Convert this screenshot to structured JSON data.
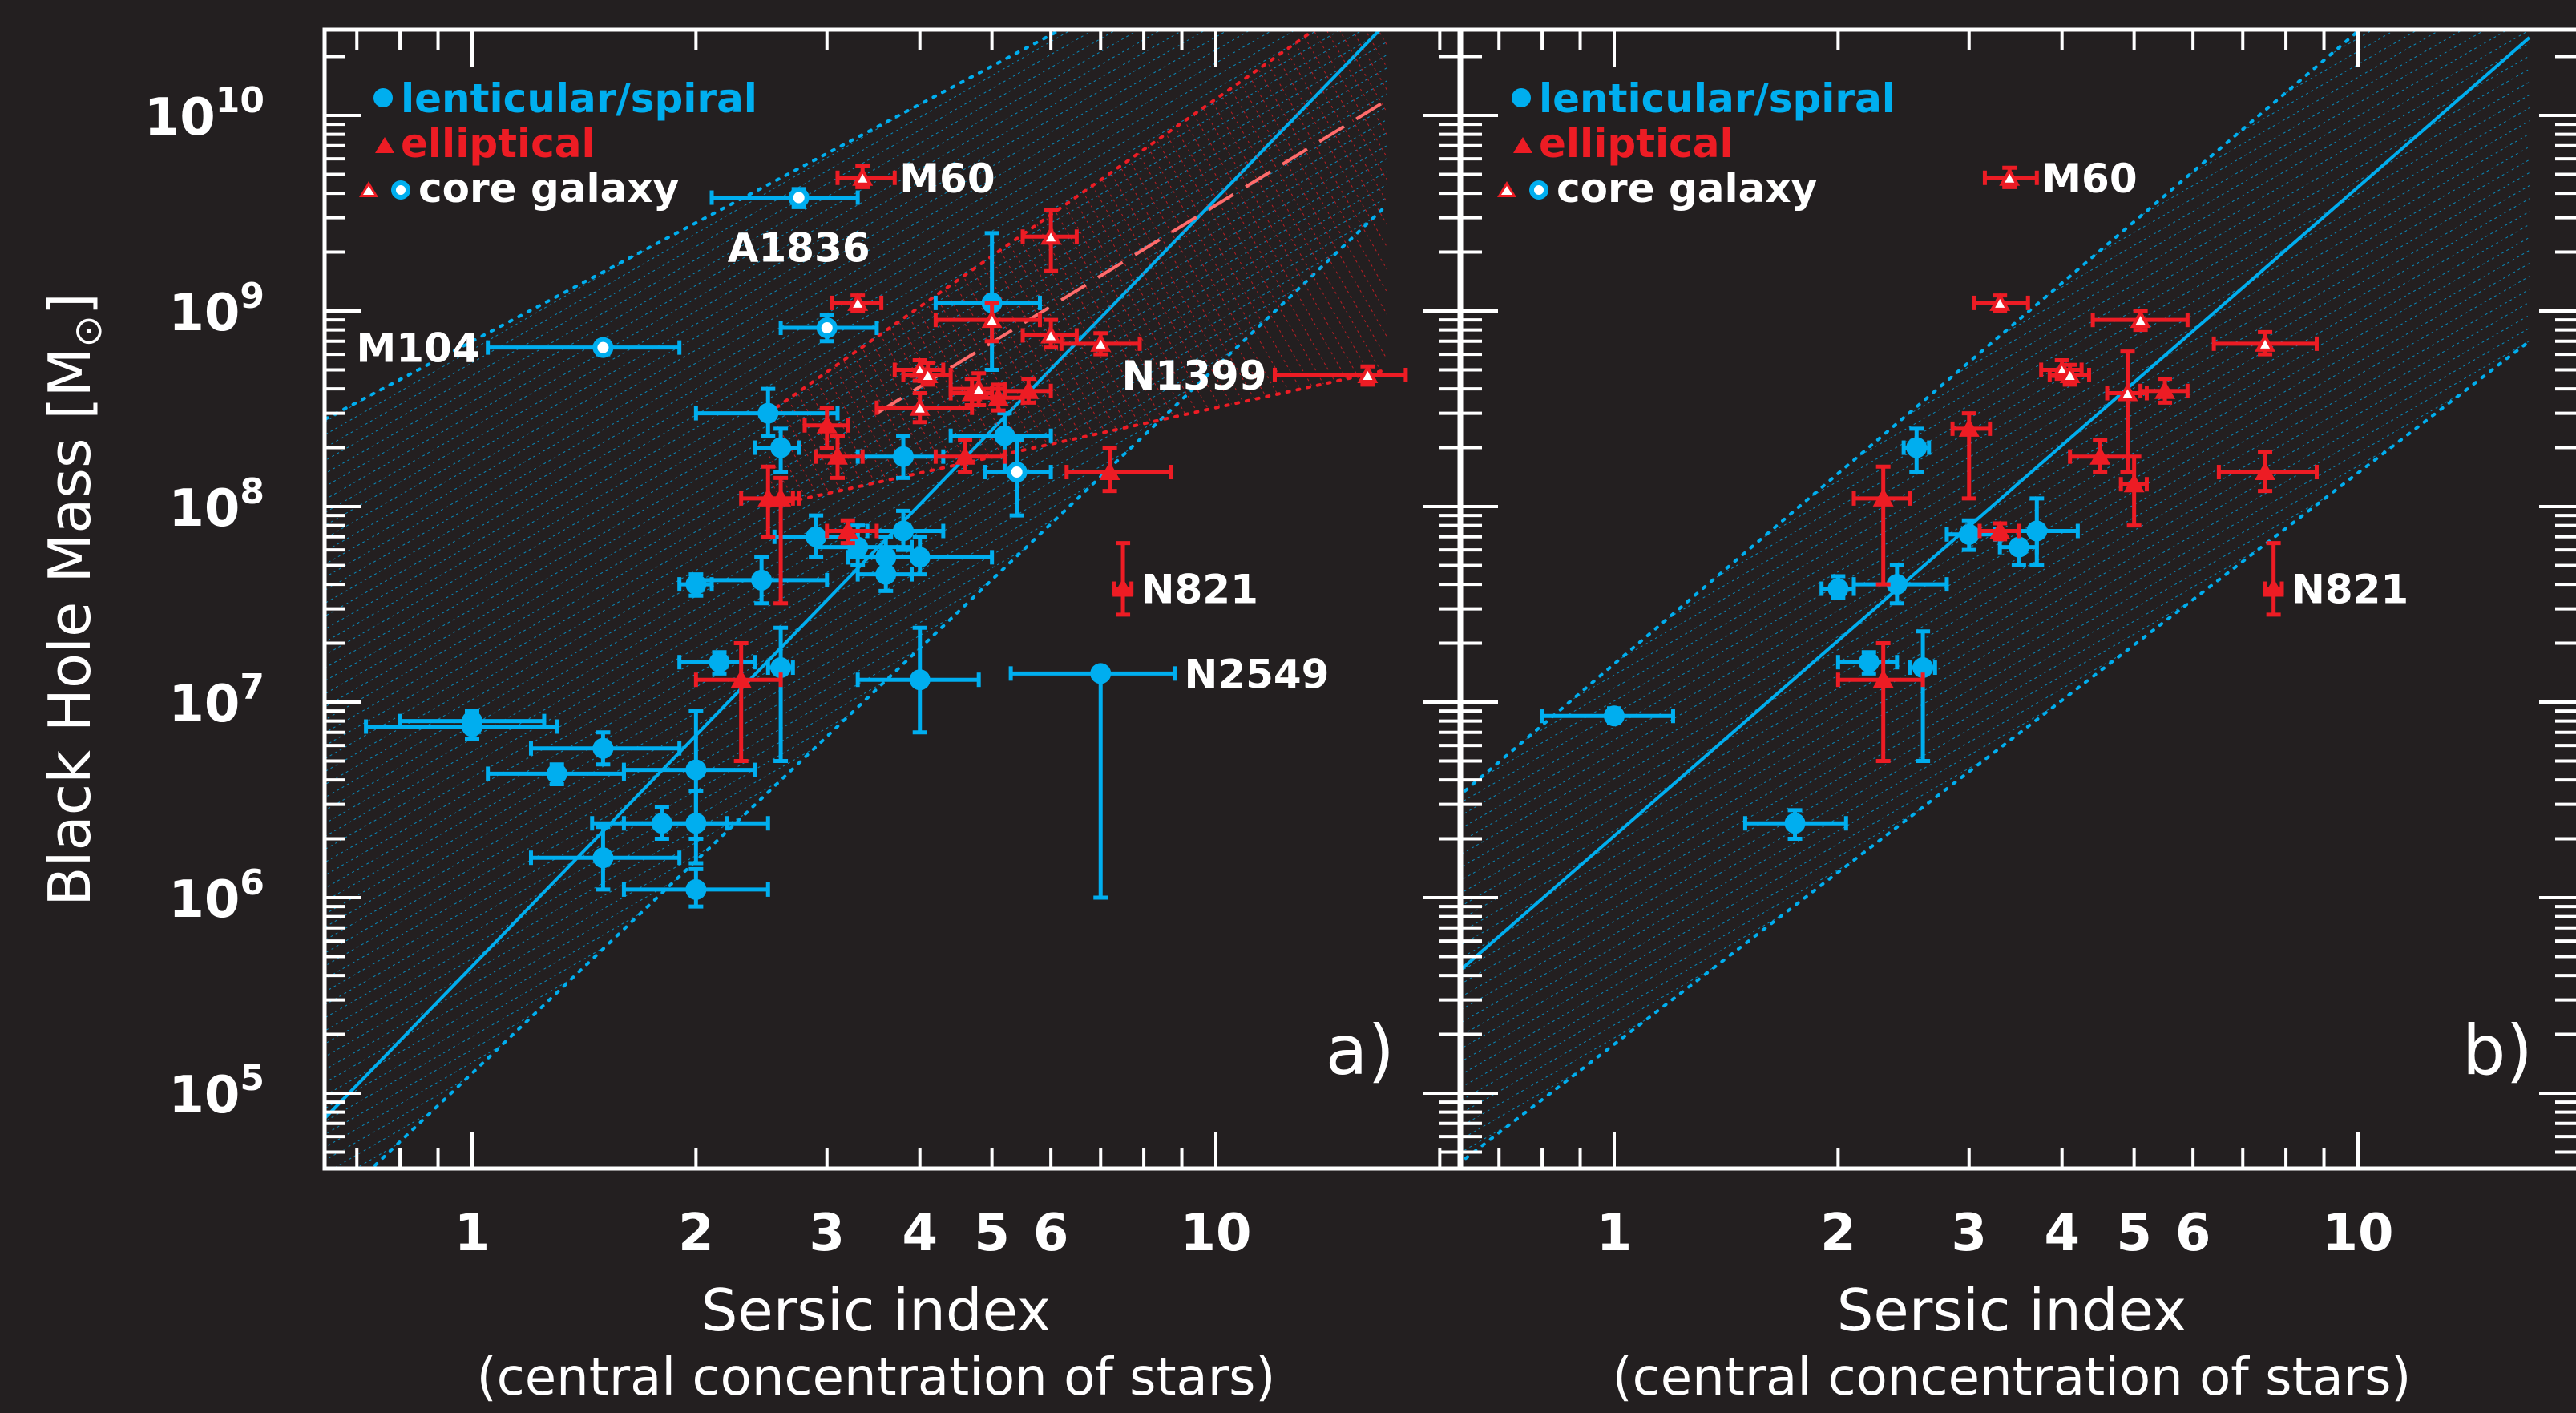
{
  "colors": {
    "background": "#231f20",
    "axes": "#ffffff",
    "spiral": "#00aeef",
    "elliptical": "#ed1c24",
    "fit_dashed": "#ff6b6b"
  },
  "y_axis_title": "Black Hole Mass [M",
  "y_axis_sun": "⊙",
  "y_axis_close": "]",
  "y_tick_labels": [
    {
      "base": "10",
      "exp": "5"
    },
    {
      "base": "10",
      "exp": "6"
    },
    {
      "base": "10",
      "exp": "7"
    },
    {
      "base": "10",
      "exp": "8"
    },
    {
      "base": "10",
      "exp": "9"
    },
    {
      "base": "10",
      "exp": "10"
    }
  ],
  "x_tick_labels": [
    "1",
    "2",
    "3",
    "4",
    "5",
    "6",
    "10"
  ],
  "x_axis_title": "Sersic index",
  "x_axis_subtitle": "(central concentration of stars)",
  "legend": {
    "spiral": "lenticular/spiral",
    "elliptical": "elliptical",
    "core": "core galaxy",
    "position": "top-left"
  },
  "chart_data": [
    {
      "type": "scatter",
      "panel_label": "a)",
      "x_scale": "log",
      "y_scale": "log",
      "xlim": [
        0.67,
        16.5
      ],
      "ylim": [
        50000,
        20000000000
      ],
      "series": [
        {
          "name": "lenticular/spiral",
          "points": [
            {
              "x": 1.0,
              "y": 8000000,
              "xlo": 0.8,
              "xhi": 1.25,
              "ylo": 7000000,
              "yhi": 9000000
            },
            {
              "x": 1.0,
              "y": 7500000,
              "xlo": 0.72,
              "xhi": 1.3,
              "ylo": 6500000,
              "yhi": 8500000
            },
            {
              "x": 1.3,
              "y": 4300000,
              "xlo": 1.05,
              "xhi": 1.6,
              "ylo": 3800000,
              "yhi": 4800000
            },
            {
              "x": 1.5,
              "y": 5800000,
              "xlo": 1.2,
              "xhi": 1.9,
              "ylo": 4800000,
              "yhi": 7000000
            },
            {
              "x": 2.0,
              "y": 4500000,
              "xlo": 1.6,
              "xhi": 2.4,
              "ylo": 2000000,
              "yhi": 9000000
            },
            {
              "x": 1.5,
              "y": 1600000,
              "xlo": 1.2,
              "xhi": 1.9,
              "ylo": 1100000,
              "yhi": 2300000
            },
            {
              "x": 1.8,
              "y": 2400000,
              "xlo": 1.45,
              "xhi": 2.2,
              "ylo": 2000000,
              "yhi": 2900000
            },
            {
              "x": 2.0,
              "y": 2400000,
              "xlo": 1.6,
              "xhi": 2.5,
              "ylo": 1500000,
              "yhi": 3500000
            },
            {
              "x": 2.0,
              "y": 1100000,
              "xlo": 1.6,
              "xhi": 2.5,
              "ylo": 900000,
              "yhi": 1400000
            },
            {
              "x": 2.15,
              "y": 16000000,
              "xlo": 1.9,
              "xhi": 2.4,
              "ylo": 14000000,
              "yhi": 18000000
            },
            {
              "x": 2.6,
              "y": 15000000,
              "xlo": 2.5,
              "xhi": 2.7,
              "ylo": 5000000,
              "yhi": 24000000
            },
            {
              "x": 2.0,
              "y": 40000000,
              "xlo": 1.9,
              "xhi": 2.1,
              "ylo": 35000000,
              "yhi": 45000000
            },
            {
              "x": 2.45,
              "y": 42000000,
              "xlo": 2.0,
              "xhi": 3.0,
              "ylo": 32000000,
              "yhi": 55000000
            },
            {
              "x": 2.5,
              "y": 300000000,
              "xlo": 2.0,
              "xhi": 3.1,
              "ylo": 230000000,
              "yhi": 400000000
            },
            {
              "x": 2.6,
              "y": 200000000,
              "xlo": 2.4,
              "xhi": 2.75,
              "ylo": 150000000,
              "yhi": 250000000
            },
            {
              "x": 2.9,
              "y": 70000000,
              "xlo": 2.55,
              "xhi": 3.3,
              "ylo": 55000000,
              "yhi": 90000000
            },
            {
              "x": 3.3,
              "y": 62000000,
              "xlo": 2.9,
              "xhi": 3.9,
              "ylo": 50000000,
              "yhi": 80000000
            },
            {
              "x": 3.6,
              "y": 55000000,
              "xlo": 3.2,
              "xhi": 4.0,
              "ylo": 45000000,
              "yhi": 70000000
            },
            {
              "x": 3.6,
              "y": 45000000,
              "xlo": 3.3,
              "xhi": 3.9,
              "ylo": 37000000,
              "yhi": 55000000
            },
            {
              "x": 3.8,
              "y": 75000000,
              "xlo": 3.4,
              "xhi": 4.3,
              "ylo": 60000000,
              "yhi": 95000000
            },
            {
              "x": 4.0,
              "y": 55000000,
              "xlo": 3.2,
              "xhi": 5.0,
              "ylo": 45000000,
              "yhi": 70000000
            },
            {
              "x": 4.0,
              "y": 13000000,
              "xlo": 3.3,
              "xhi": 4.8,
              "ylo": 7000000,
              "yhi": 24000000
            },
            {
              "x": 3.8,
              "y": 180000000,
              "xlo": 3.3,
              "xhi": 4.3,
              "ylo": 140000000,
              "yhi": 230000000
            },
            {
              "x": 5.2,
              "y": 230000000,
              "xlo": 4.4,
              "xhi": 6.0,
              "ylo": 150000000,
              "yhi": 300000000
            },
            {
              "x": 5.0,
              "y": 1100000000,
              "xlo": 4.2,
              "xhi": 5.8,
              "ylo": 500000000,
              "yhi": 2500000000
            },
            {
              "x": 7.0,
              "y": 14000000,
              "xlo": 5.3,
              "xhi": 8.8,
              "ylo": 1000000,
              "yhi": 14000000
            }
          ]
        },
        {
          "name": "lenticular/spiral core galaxy",
          "points": [
            {
              "x": 1.5,
              "y": 650000000,
              "label": "M104",
              "xlo": 1.05,
              "xhi": 1.9,
              "ylo": 600000000,
              "yhi": 700000000
            },
            {
              "x": 2.75,
              "y": 3800000000,
              "label": "A1836",
              "xlo": 2.1,
              "xhi": 3.3,
              "ylo": 3400000000,
              "yhi": 4200000000
            },
            {
              "x": 3.0,
              "y": 820000000,
              "xlo": 2.6,
              "xhi": 3.5,
              "ylo": 700000000,
              "yhi": 950000000
            },
            {
              "x": 5.4,
              "y": 150000000,
              "xlo": 4.9,
              "xhi": 6.0,
              "ylo": 90000000,
              "yhi": 220000000
            }
          ]
        },
        {
          "name": "elliptical",
          "points": [
            {
              "x": 2.5,
              "y": 110000000,
              "xlo": 2.3,
              "xhi": 2.75,
              "ylo": 70000000,
              "yhi": 160000000
            },
            {
              "x": 2.6,
              "y": 110000000,
              "xlo": 2.5,
              "xhi": 2.7,
              "ylo": 32000000,
              "yhi": 140000000
            },
            {
              "x": 2.3,
              "y": 13000000,
              "xlo": 2.0,
              "xhi": 2.6,
              "ylo": 5000000,
              "yhi": 20000000
            },
            {
              "x": 3.0,
              "y": 260000000,
              "xlo": 2.8,
              "xhi": 3.2,
              "ylo": 200000000,
              "yhi": 320000000
            },
            {
              "x": 3.1,
              "y": 180000000,
              "xlo": 2.9,
              "xhi": 3.35,
              "ylo": 140000000,
              "yhi": 230000000
            },
            {
              "x": 3.2,
              "y": 75000000,
              "xlo": 3.0,
              "xhi": 3.5,
              "ylo": 65000000,
              "yhi": 85000000
            },
            {
              "x": 4.6,
              "y": 180000000,
              "xlo": 4.2,
              "xhi": 5.2,
              "ylo": 150000000,
              "yhi": 220000000
            },
            {
              "x": 4.7,
              "y": 380000000,
              "xlo": 4.4,
              "xhi": 5.0,
              "ylo": 330000000,
              "yhi": 450000000
            },
            {
              "x": 5.1,
              "y": 360000000,
              "xlo": 4.7,
              "xhi": 5.5,
              "ylo": 310000000,
              "yhi": 420000000
            },
            {
              "x": 5.6,
              "y": 390000000,
              "xlo": 5.2,
              "xhi": 6.0,
              "ylo": 340000000,
              "yhi": 450000000
            },
            {
              "x": 7.2,
              "y": 150000000,
              "xlo": 6.3,
              "xhi": 8.7,
              "ylo": 120000000,
              "yhi": 200000000
            },
            {
              "x": 7.5,
              "y": 38000000,
              "xlo": 7.3,
              "xhi": 7.7,
              "ylo": 28000000,
              "yhi": 65000000,
              "label": "N821"
            }
          ]
        },
        {
          "name": "elliptical core galaxy",
          "points": [
            {
              "x": 3.35,
              "y": 4800000000,
              "label": "M60",
              "xlo": 3.1,
              "xhi": 3.7,
              "ylo": 4300000000,
              "yhi": 5500000000
            },
            {
              "x": 3.3,
              "y": 1100000000,
              "xlo": 3.05,
              "xhi": 3.55,
              "ylo": 1000000000,
              "yhi": 1200000000
            },
            {
              "x": 4.0,
              "y": 500000000,
              "xlo": 3.7,
              "xhi": 4.3,
              "ylo": 440000000,
              "yhi": 560000000
            },
            {
              "x": 4.1,
              "y": 470000000,
              "xlo": 3.8,
              "xhi": 4.4,
              "ylo": 420000000,
              "yhi": 540000000
            },
            {
              "x": 4.0,
              "y": 320000000,
              "xlo": 3.5,
              "xhi": 4.7,
              "ylo": 270000000,
              "yhi": 380000000
            },
            {
              "x": 5.0,
              "y": 900000000,
              "xlo": 4.2,
              "xhi": 5.8,
              "ylo": 700000000,
              "yhi": 1100000000
            },
            {
              "x": 4.8,
              "y": 400000000,
              "xlo": 4.4,
              "xhi": 5.2,
              "ylo": 330000000,
              "yhi": 480000000
            },
            {
              "x": 6.0,
              "y": 2400000000,
              "xlo": 5.5,
              "xhi": 6.5,
              "ylo": 1600000000,
              "yhi": 3300000000
            },
            {
              "x": 6.0,
              "y": 750000000,
              "xlo": 5.5,
              "xhi": 6.5,
              "ylo": 650000000,
              "yhi": 900000000
            },
            {
              "x": 7.0,
              "y": 680000000,
              "xlo": 6.2,
              "xhi": 7.9,
              "ylo": 600000000,
              "yhi": 770000000
            },
            {
              "x": 16.0,
              "y": 470000000,
              "label": "N1399",
              "xlo": 12.0,
              "xhi": 18.0,
              "ylo": 420000000,
              "yhi": 520000000
            }
          ]
        }
      ],
      "fits": [
        {
          "name": "spiral fit",
          "style": "solid",
          "x": [
            0.6,
            17.0
          ],
          "y": [
            60000,
            30000000000
          ],
          "band_x": [
            0.6,
            17.0
          ],
          "band_lo": [
            20000,
            3500000000
          ],
          "band_hi": [
            250000000,
            210000000000
          ]
        },
        {
          "name": "elliptical fit",
          "style": "dashed",
          "x": [
            3.5,
            17.0
          ],
          "y": [
            300000000,
            12000000000
          ],
          "band_x": [
            2.5,
            17.0
          ],
          "band_lo": [
            100000000,
            500000000
          ],
          "band_hi": [
            300000000,
            50000000000
          ]
        }
      ]
    },
    {
      "type": "scatter",
      "panel_label": "b)",
      "x_scale": "log",
      "y_scale": "log",
      "xlim": [
        0.67,
        16.5
      ],
      "ylim": [
        50000,
        20000000000
      ],
      "series": [
        {
          "name": "lenticular/spiral",
          "points": [
            {
              "x": 1.0,
              "y": 8500000,
              "xlo": 0.8,
              "xhi": 1.2,
              "ylo": 7800000,
              "yhi": 9300000
            },
            {
              "x": 1.75,
              "y": 2400000,
              "xlo": 1.5,
              "xhi": 2.05,
              "ylo": 2000000,
              "yhi": 2800000
            },
            {
              "x": 2.0,
              "y": 38000000,
              "xlo": 1.9,
              "xhi": 2.1,
              "ylo": 34000000,
              "yhi": 44000000
            },
            {
              "x": 2.4,
              "y": 40000000,
              "xlo": 2.1,
              "xhi": 2.8,
              "ylo": 32000000,
              "yhi": 50000000
            },
            {
              "x": 2.2,
              "y": 16000000,
              "xlo": 2.0,
              "xhi": 2.4,
              "ylo": 14000000,
              "yhi": 18000000
            },
            {
              "x": 2.6,
              "y": 15000000,
              "xlo": 2.5,
              "xhi": 2.7,
              "ylo": 5000000,
              "yhi": 23000000
            },
            {
              "x": 2.55,
              "y": 200000000,
              "xlo": 2.45,
              "xhi": 2.65,
              "ylo": 150000000,
              "yhi": 250000000
            },
            {
              "x": 3.0,
              "y": 72000000,
              "xlo": 2.8,
              "xhi": 3.25,
              "ylo": 60000000,
              "yhi": 85000000
            },
            {
              "x": 3.5,
              "y": 62000000,
              "xlo": 3.3,
              "xhi": 3.7,
              "ylo": 50000000,
              "yhi": 75000000
            },
            {
              "x": 3.7,
              "y": 75000000,
              "xlo": 3.3,
              "xhi": 4.2,
              "ylo": 50000000,
              "yhi": 110000000
            }
          ]
        },
        {
          "name": "elliptical",
          "points": [
            {
              "x": 2.3,
              "y": 110000000,
              "xlo": 2.1,
              "xhi": 2.5,
              "ylo": 40000000,
              "yhi": 160000000
            },
            {
              "x": 2.3,
              "y": 13000000,
              "xlo": 2.0,
              "xhi": 2.6,
              "ylo": 5000000,
              "yhi": 20000000
            },
            {
              "x": 3.0,
              "y": 250000000,
              "xlo": 2.85,
              "xhi": 3.2,
              "ylo": 110000000,
              "yhi": 300000000
            },
            {
              "x": 3.3,
              "y": 75000000,
              "xlo": 3.1,
              "xhi": 3.5,
              "ylo": 68000000,
              "yhi": 82000000
            },
            {
              "x": 4.5,
              "y": 180000000,
              "xlo": 4.1,
              "xhi": 4.9,
              "ylo": 150000000,
              "yhi": 220000000
            },
            {
              "x": 5.0,
              "y": 130000000,
              "xlo": 4.8,
              "xhi": 5.2,
              "ylo": 80000000,
              "yhi": 180000000
            },
            {
              "x": 5.5,
              "y": 390000000,
              "xlo": 5.1,
              "xhi": 5.9,
              "ylo": 340000000,
              "yhi": 450000000
            },
            {
              "x": 7.5,
              "y": 150000000,
              "xlo": 6.5,
              "xhi": 8.8,
              "ylo": 120000000,
              "yhi": 190000000
            },
            {
              "x": 7.7,
              "y": 38000000,
              "xlo": 7.5,
              "xhi": 7.9,
              "ylo": 28000000,
              "yhi": 65000000,
              "label": "N821"
            }
          ]
        },
        {
          "name": "elliptical core galaxy",
          "points": [
            {
              "x": 3.4,
              "y": 4800000000,
              "label": "M60",
              "xlo": 3.15,
              "xhi": 3.7,
              "ylo": 4300000000,
              "yhi": 5400000000
            },
            {
              "x": 3.3,
              "y": 1100000000,
              "xlo": 3.05,
              "xhi": 3.6,
              "ylo": 1000000000,
              "yhi": 1200000000
            },
            {
              "x": 4.0,
              "y": 500000000,
              "xlo": 3.75,
              "xhi": 4.25,
              "ylo": 450000000,
              "yhi": 560000000
            },
            {
              "x": 4.1,
              "y": 470000000,
              "xlo": 3.85,
              "xhi": 4.35,
              "ylo": 420000000,
              "yhi": 530000000
            },
            {
              "x": 5.1,
              "y": 900000000,
              "xlo": 4.4,
              "xhi": 5.9,
              "ylo": 800000000,
              "yhi": 1000000000
            },
            {
              "x": 4.9,
              "y": 380000000,
              "xlo": 4.6,
              "xhi": 5.2,
              "ylo": 150000000,
              "yhi": 620000000
            },
            {
              "x": 7.5,
              "y": 680000000,
              "xlo": 6.4,
              "xhi": 8.8,
              "ylo": 600000000,
              "yhi": 780000000
            }
          ]
        }
      ],
      "fits": [
        {
          "name": "all fit",
          "style": "solid",
          "x": [
            0.6,
            17.0
          ],
          "y": [
            380000,
            25000000000
          ],
          "band_x": [
            0.6,
            17.0
          ],
          "band_lo": [
            40000,
            700000000
          ],
          "band_hi": [
            3000000,
            150000000000
          ]
        }
      ]
    }
  ]
}
